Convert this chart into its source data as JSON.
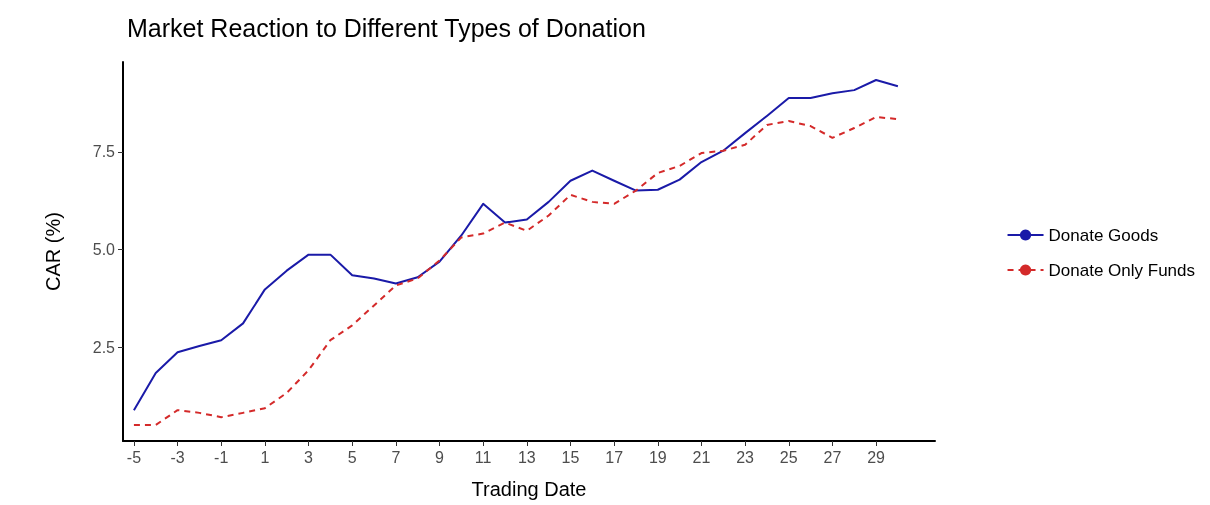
{
  "chart_data": {
    "type": "line",
    "title": "Market Reaction to Different Types of Donation",
    "xlabel": "Trading Date",
    "ylabel": "CAR (%)",
    "x": [
      -5,
      -4,
      -3,
      -2,
      -1,
      0,
      1,
      2,
      3,
      4,
      5,
      6,
      7,
      8,
      9,
      10,
      11,
      12,
      13,
      14,
      15,
      16,
      17,
      18,
      19,
      20,
      21,
      22,
      23,
      24,
      25,
      26,
      27,
      28,
      29,
      30
    ],
    "series": [
      {
        "name": "Donate Goods",
        "color": "#1a1aa8",
        "line_style": "solid",
        "values": [
          0.89,
          1.84,
          2.37,
          2.53,
          2.68,
          3.11,
          3.98,
          4.46,
          4.87,
          4.87,
          4.34,
          4.26,
          4.13,
          4.29,
          4.69,
          5.36,
          6.17,
          5.69,
          5.77,
          6.22,
          6.76,
          7.02,
          6.76,
          6.51,
          6.53,
          6.79,
          7.24,
          7.53,
          7.98,
          8.42,
          8.88,
          8.88,
          9.0,
          9.08,
          9.34,
          9.18
        ]
      },
      {
        "name": "Donate Only Funds",
        "color": "#d42a2a",
        "line_style": "dashed",
        "values": [
          0.51,
          0.51,
          0.89,
          0.82,
          0.71,
          0.82,
          0.94,
          1.33,
          1.91,
          2.68,
          3.06,
          3.57,
          4.08,
          4.26,
          4.72,
          5.31,
          5.41,
          5.69,
          5.48,
          5.87,
          6.4,
          6.22,
          6.17,
          6.51,
          6.96,
          7.14,
          7.47,
          7.53,
          7.68,
          8.19,
          8.29,
          8.16,
          7.86,
          8.11,
          8.39,
          8.34
        ]
      }
    ],
    "xlim": [
      -5.5,
      31.7
    ],
    "xticks": [
      -5,
      -3,
      -1,
      1,
      3,
      5,
      7,
      9,
      11,
      13,
      15,
      17,
      19,
      21,
      23,
      25,
      27,
      29
    ],
    "ylim": [
      0.1,
      9.8
    ],
    "yticks": [
      2.5,
      {
        "value": 5,
        "label": "5.0"
      },
      7.5
    ],
    "grid": false,
    "legend": "right",
    "marker": "none"
  }
}
